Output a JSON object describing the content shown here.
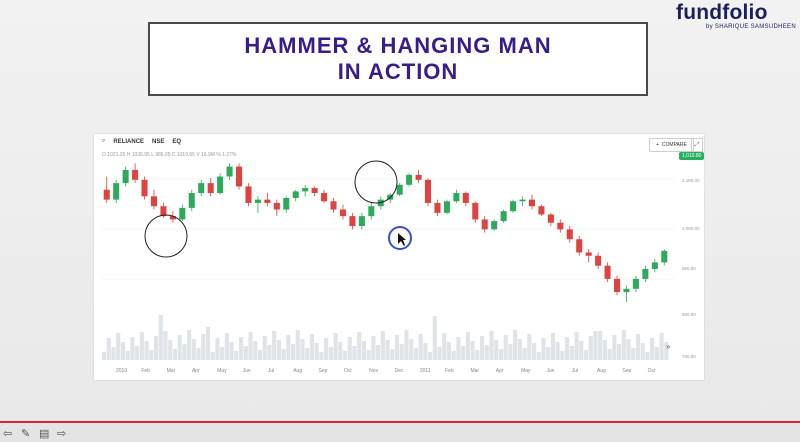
{
  "brand": {
    "name": "fundfolio",
    "byline": "by SHARIQUE SAMSUDHEEN"
  },
  "title": {
    "line1": "HAMMER & HANGING MAN",
    "line2": "IN ACTION"
  },
  "chart_panel": {
    "symbol": "RELIANCE",
    "exchange1": "NSE",
    "exchange2": "EQ",
    "ohlc_text": "O 1021.35   H 1035.95   L 986.05   C 1019.65   V 16.9M   % 1.27%",
    "compare_label": "COMPARE",
    "price_tag": "1,019.80",
    "y_labels": [
      "1,150.00",
      "1,050.00",
      "950.00",
      "800.00",
      "700.00"
    ],
    "months": [
      "2010",
      "Feb",
      "Mar",
      "Apr",
      "May",
      "Jun",
      "Jul",
      "Aug",
      "Sep",
      "Oct",
      "Nov",
      "Dec",
      "2011",
      "Feb",
      "Mar",
      "Apr",
      "May",
      "Jun",
      "Jul",
      "Aug",
      "Sep",
      "Oct"
    ]
  },
  "chart_data": {
    "type": "candlestick",
    "candles": [
      [
        1080,
        1120,
        1040,
        1050
      ],
      [
        1050,
        1110,
        1040,
        1100
      ],
      [
        1100,
        1150,
        1090,
        1140
      ],
      [
        1140,
        1160,
        1100,
        1110
      ],
      [
        1110,
        1120,
        1050,
        1060
      ],
      [
        1060,
        1080,
        1020,
        1030
      ],
      [
        1030,
        1040,
        995,
        1000
      ],
      [
        1000,
        1015,
        980,
        990
      ],
      [
        990,
        1035,
        985,
        1025
      ],
      [
        1025,
        1080,
        1015,
        1070
      ],
      [
        1070,
        1110,
        1060,
        1100
      ],
      [
        1100,
        1115,
        1060,
        1070
      ],
      [
        1070,
        1130,
        1065,
        1120
      ],
      [
        1120,
        1160,
        1110,
        1150
      ],
      [
        1150,
        1160,
        1080,
        1090
      ],
      [
        1090,
        1100,
        1030,
        1040
      ],
      [
        1040,
        1060,
        1010,
        1050
      ],
      [
        1050,
        1070,
        1030,
        1040
      ],
      [
        1040,
        1050,
        1000,
        1020
      ],
      [
        1020,
        1060,
        1010,
        1055
      ],
      [
        1055,
        1080,
        1045,
        1075
      ],
      [
        1075,
        1095,
        1060,
        1085
      ],
      [
        1085,
        1090,
        1060,
        1070
      ],
      [
        1070,
        1080,
        1040,
        1045
      ],
      [
        1045,
        1055,
        1010,
        1020
      ],
      [
        1020,
        1035,
        990,
        1000
      ],
      [
        1000,
        1010,
        960,
        970
      ],
      [
        970,
        1010,
        960,
        1000
      ],
      [
        1000,
        1040,
        990,
        1030
      ],
      [
        1030,
        1060,
        1020,
        1050
      ],
      [
        1050,
        1070,
        1040,
        1065
      ],
      [
        1065,
        1100,
        1060,
        1095
      ],
      [
        1095,
        1130,
        1090,
        1125
      ],
      [
        1125,
        1140,
        1100,
        1110
      ],
      [
        1110,
        1115,
        1030,
        1040
      ],
      [
        1040,
        1050,
        1000,
        1010
      ],
      [
        1010,
        1050,
        1005,
        1045
      ],
      [
        1045,
        1080,
        1040,
        1070
      ],
      [
        1070,
        1075,
        1030,
        1040
      ],
      [
        1040,
        1045,
        980,
        990
      ],
      [
        990,
        1000,
        950,
        960
      ],
      [
        960,
        990,
        955,
        985
      ],
      [
        985,
        1020,
        980,
        1015
      ],
      [
        1015,
        1050,
        1010,
        1045
      ],
      [
        1045,
        1060,
        1030,
        1050
      ],
      [
        1050,
        1065,
        1020,
        1030
      ],
      [
        1030,
        1035,
        1000,
        1005
      ],
      [
        1005,
        1010,
        970,
        980
      ],
      [
        980,
        990,
        950,
        960
      ],
      [
        960,
        970,
        920,
        930
      ],
      [
        930,
        940,
        880,
        890
      ],
      [
        890,
        900,
        860,
        880
      ],
      [
        880,
        890,
        840,
        850
      ],
      [
        850,
        860,
        800,
        810
      ],
      [
        810,
        820,
        760,
        770
      ],
      [
        770,
        790,
        740,
        780
      ],
      [
        780,
        820,
        770,
        810
      ],
      [
        810,
        850,
        800,
        840
      ],
      [
        840,
        870,
        830,
        860
      ],
      [
        860,
        900,
        850,
        895
      ]
    ],
    "ylim": [
      740,
      1170
    ],
    "circled_regions": [
      "hammer",
      "hanging-man",
      "hammer-confirmation"
    ]
  },
  "bottom": {
    "arrow_left": "⇦",
    "pen": "✎",
    "note": "▤",
    "arrow_right": "⇨"
  }
}
